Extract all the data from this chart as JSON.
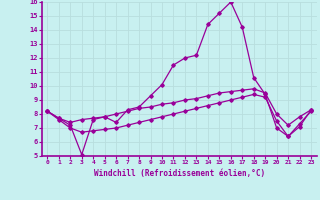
{
  "title": "",
  "xlabel": "Windchill (Refroidissement éolien,°C)",
  "ylabel": "",
  "bg_color": "#c8f0f0",
  "line_color": "#990099",
  "grid_color": "#b8dede",
  "xlim": [
    -0.5,
    23.5
  ],
  "ylim": [
    5,
    16
  ],
  "xticks": [
    0,
    1,
    2,
    3,
    4,
    5,
    6,
    7,
    8,
    9,
    10,
    11,
    12,
    13,
    14,
    15,
    16,
    17,
    18,
    19,
    20,
    21,
    22,
    23
  ],
  "yticks": [
    5,
    6,
    7,
    8,
    9,
    10,
    11,
    12,
    13,
    14,
    15,
    16
  ],
  "line1_x": [
    0,
    1,
    2,
    3,
    4,
    5,
    6,
    7,
    8,
    9,
    10,
    11,
    12,
    13,
    14,
    15,
    16,
    17,
    18,
    19,
    20,
    21,
    22,
    23
  ],
  "line1_y": [
    8.2,
    7.7,
    7.2,
    5.1,
    7.6,
    7.8,
    7.4,
    8.3,
    8.5,
    9.3,
    10.1,
    11.5,
    12.0,
    12.2,
    14.4,
    15.2,
    16.0,
    14.2,
    10.6,
    9.4,
    7.0,
    6.4,
    7.3,
    8.2
  ],
  "line2_x": [
    0,
    1,
    2,
    3,
    4,
    5,
    6,
    7,
    8,
    9,
    10,
    11,
    12,
    13,
    14,
    15,
    16,
    17,
    18,
    19,
    20,
    21,
    22,
    23
  ],
  "line2_y": [
    8.2,
    7.7,
    7.4,
    7.6,
    7.7,
    7.8,
    8.0,
    8.2,
    8.4,
    8.5,
    8.7,
    8.8,
    9.0,
    9.1,
    9.3,
    9.5,
    9.6,
    9.7,
    9.8,
    9.5,
    8.0,
    7.2,
    7.8,
    8.3
  ],
  "line3_x": [
    0,
    1,
    2,
    3,
    4,
    5,
    6,
    7,
    8,
    9,
    10,
    11,
    12,
    13,
    14,
    15,
    16,
    17,
    18,
    19,
    20,
    21,
    22,
    23
  ],
  "line3_y": [
    8.2,
    7.6,
    7.0,
    6.7,
    6.8,
    6.9,
    7.0,
    7.2,
    7.4,
    7.6,
    7.8,
    8.0,
    8.2,
    8.4,
    8.6,
    8.8,
    9.0,
    9.2,
    9.4,
    9.2,
    7.5,
    6.4,
    7.1,
    8.3
  ]
}
